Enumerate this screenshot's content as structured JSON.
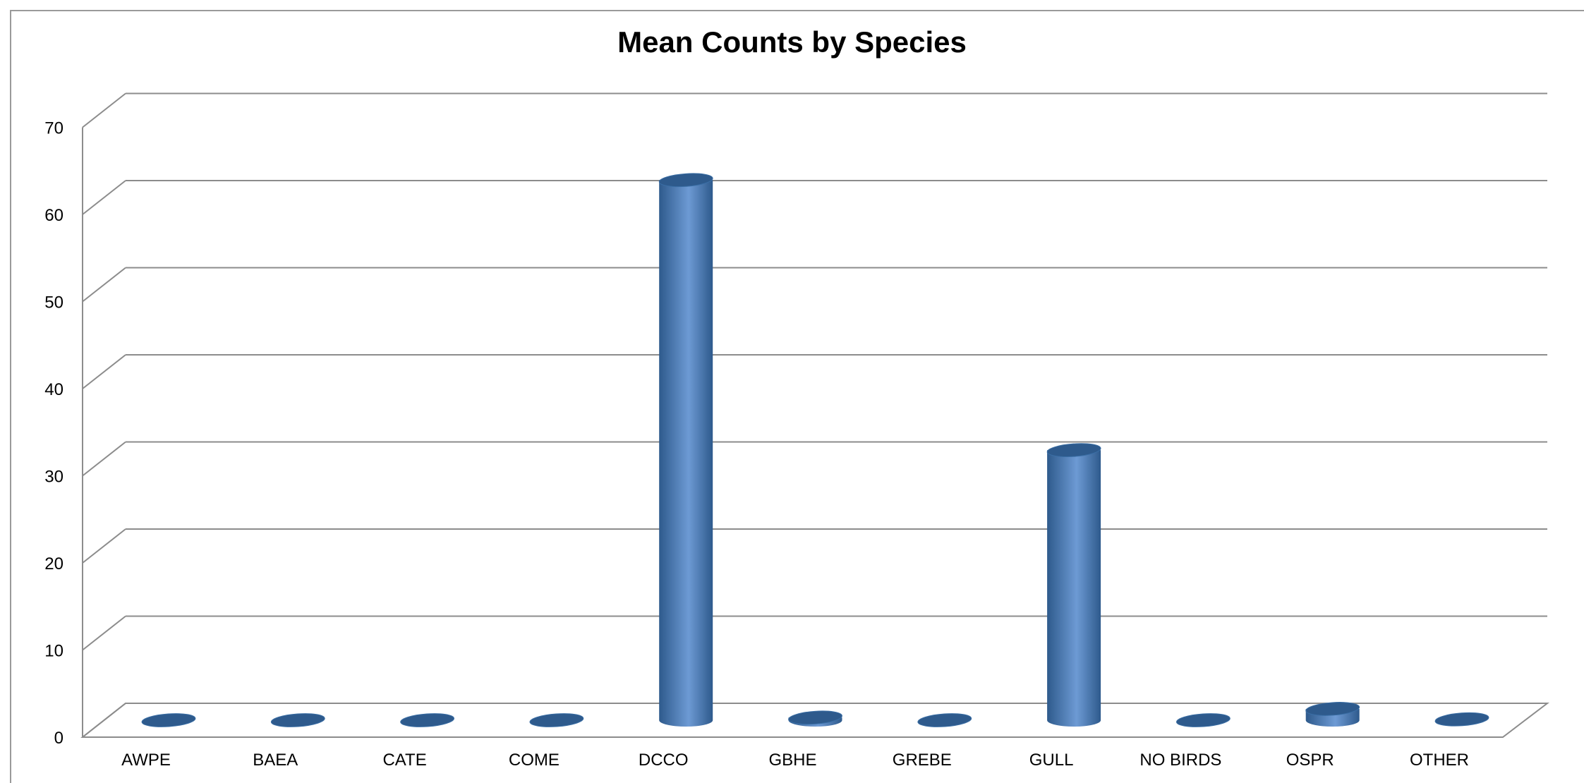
{
  "chart_data": {
    "type": "bar",
    "style": "3d-cylinder",
    "title": "Mean Counts by Species",
    "xlabel": "",
    "ylabel": "",
    "categories": [
      "AWPE",
      "BAEA",
      "CATE",
      "COME",
      "DCCO",
      "GBHE",
      "GREBE",
      "GULL",
      "NO BIRDS",
      "OSPR",
      "OTHER"
    ],
    "values": [
      0,
      0,
      0,
      0,
      62,
      0.3,
      0,
      31,
      0,
      1.3,
      0.1
    ],
    "ylim": [
      0,
      70
    ],
    "yticks": [
      0,
      10,
      20,
      30,
      40,
      50,
      60,
      70
    ],
    "grid": true,
    "legend": "none",
    "colors": {
      "bar": "#4f81bd",
      "bar_dark": "#2e5a8c",
      "bar_light": "#6d9ad4",
      "grid": "#8c8c8c"
    }
  }
}
